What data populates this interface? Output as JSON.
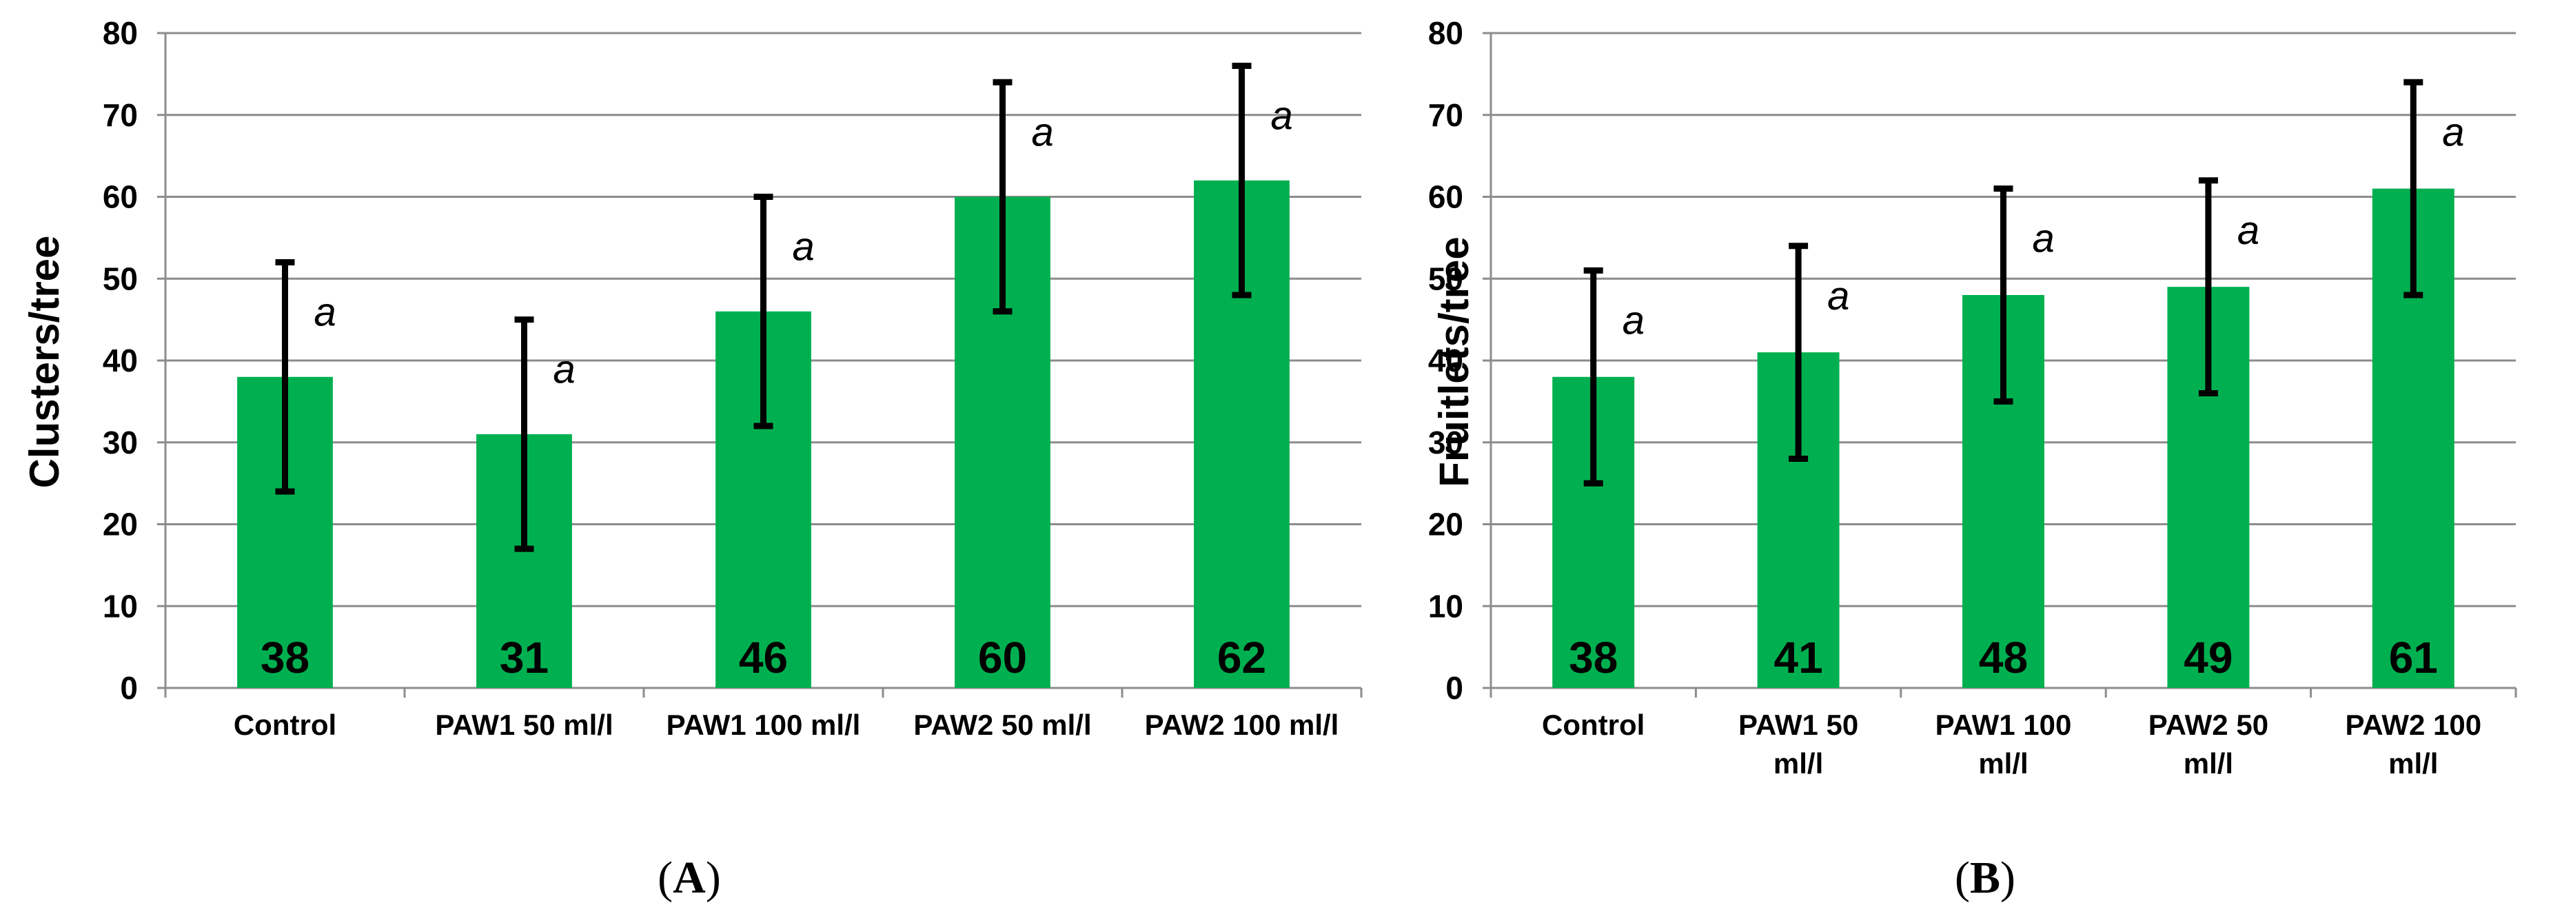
{
  "bar_color": "#00b050",
  "chart_data": [
    {
      "type": "bar",
      "panel": "A",
      "ylabel": "Clusters/tree",
      "xlabel": "",
      "ylim": [
        0,
        80
      ],
      "yticks": [
        0,
        10,
        20,
        30,
        40,
        50,
        60,
        70,
        80
      ],
      "categories": [
        [
          "Control"
        ],
        [
          "PAW1 50 ml/l"
        ],
        [
          "PAW1 100 ml/l"
        ],
        [
          "PAW2 50 ml/l"
        ],
        [
          "PAW2 100 ml/l"
        ]
      ],
      "values": [
        38,
        31,
        46,
        60,
        62
      ],
      "error_low": [
        24,
        17,
        32,
        46,
        48
      ],
      "error_high": [
        52,
        45,
        60,
        74,
        76
      ],
      "significance": [
        "a",
        "a",
        "a",
        "a",
        "a"
      ],
      "grid": true
    },
    {
      "type": "bar",
      "panel": "B",
      "ylabel": "Fruitlets/tree",
      "xlabel": "",
      "ylim": [
        0,
        80
      ],
      "yticks": [
        0,
        10,
        20,
        30,
        40,
        50,
        60,
        70,
        80
      ],
      "categories": [
        [
          "Control"
        ],
        [
          "PAW1 50",
          "ml/l"
        ],
        [
          "PAW1 100",
          "ml/l"
        ],
        [
          "PAW2 50",
          "ml/l"
        ],
        [
          "PAW2 100",
          "ml/l"
        ]
      ],
      "values": [
        38,
        41,
        48,
        49,
        61
      ],
      "error_low": [
        25,
        28,
        35,
        36,
        48
      ],
      "error_high": [
        51,
        54,
        61,
        62,
        74
      ],
      "significance": [
        "a",
        "a",
        "a",
        "a",
        "a"
      ],
      "grid": true
    }
  ],
  "panel_labels": [
    {
      "open": "(",
      "letter": "A",
      "close": ")"
    },
    {
      "open": "(",
      "letter": "B",
      "close": ")"
    }
  ]
}
